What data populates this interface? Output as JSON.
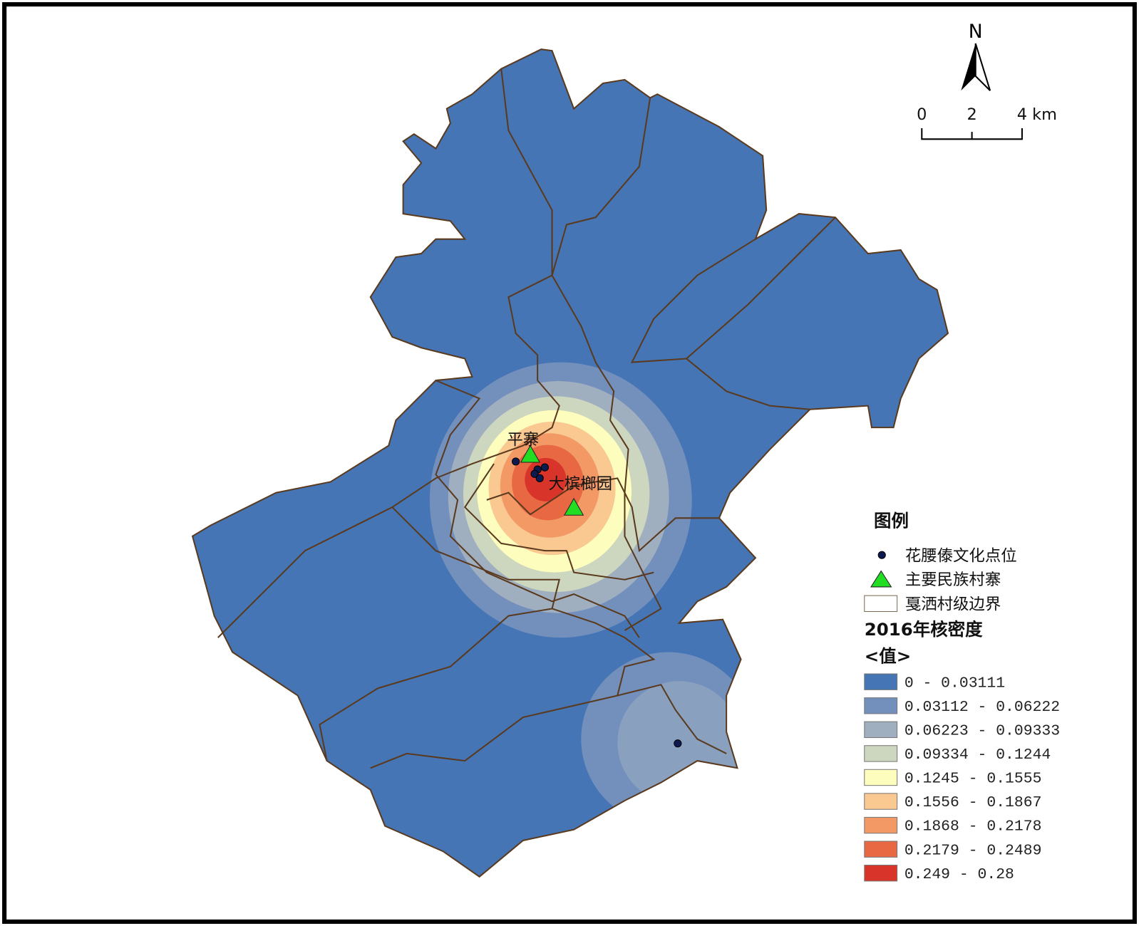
{
  "north_arrow": {
    "label": "N"
  },
  "scale_bar": {
    "labels": [
      "0",
      "2",
      "4 km"
    ]
  },
  "places": [
    "平寨",
    "大槟榔园"
  ],
  "legend": {
    "title": "图例",
    "items": [
      "花腰傣文化点位",
      "主要民族村寨",
      "戛洒村级边界"
    ],
    "density_title": "2016年核密度",
    "value_label": "<值>",
    "classes": [
      {
        "label": "0 - 0.03111",
        "color": "#4575b5"
      },
      {
        "label": "0.03112 - 0.06222",
        "color": "#7390bd"
      },
      {
        "label": "0.06223 - 0.09333",
        "color": "#a0afbf"
      },
      {
        "label": "0.09334 - 0.1244",
        "color": "#cdd6be"
      },
      {
        "label": "0.1245 - 0.1555",
        "color": "#fdfdbd"
      },
      {
        "label": "0.1556 - 0.1867",
        "color": "#fac891"
      },
      {
        "label": "0.1868 - 0.2178",
        "color": "#f39966"
      },
      {
        "label": "0.2179 - 0.2489",
        "color": "#e86844"
      },
      {
        "label": "0.249 - 0.28",
        "color": "#d93429"
      }
    ]
  }
}
